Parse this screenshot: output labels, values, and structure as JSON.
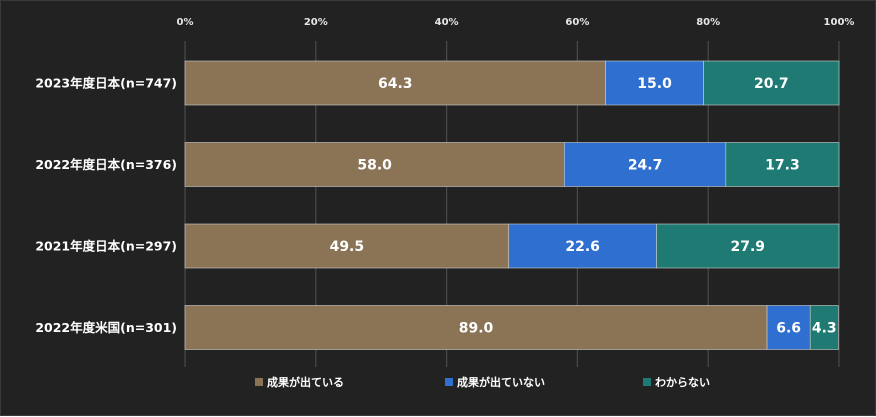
{
  "chart_data": {
    "type": "bar",
    "orientation": "horizontal",
    "stacked": true,
    "categories": [
      "2023年度日本(n=747)",
      "2022年度日本(n=376)",
      "2021年度日本(n=297)",
      "2022年度米国(n=301)"
    ],
    "series": [
      {
        "name": "成果が出ている",
        "values": [
          64.3,
          58.0,
          49.5,
          89.0
        ],
        "labels": [
          "64.3",
          "58.0",
          "49.5",
          "89.0"
        ],
        "color": "#8b7355"
      },
      {
        "name": "成果が出ていない",
        "values": [
          15.0,
          24.7,
          22.6,
          6.6
        ],
        "labels": [
          "15.0",
          "24.7",
          "22.6",
          "6.6"
        ],
        "color": "#2e6fd0"
      },
      {
        "name": "わからない",
        "values": [
          20.7,
          17.3,
          27.9,
          4.3
        ],
        "labels": [
          "20.7",
          "17.3",
          "27.9",
          "4.3"
        ],
        "color": "#1e7a72"
      }
    ],
    "xlim": [
      0,
      100
    ],
    "xticks": [
      "0%",
      "20%",
      "40%",
      "60%",
      "80%",
      "100%"
    ],
    "grid": true,
    "legend_position": "bottom",
    "background": "#222222"
  }
}
